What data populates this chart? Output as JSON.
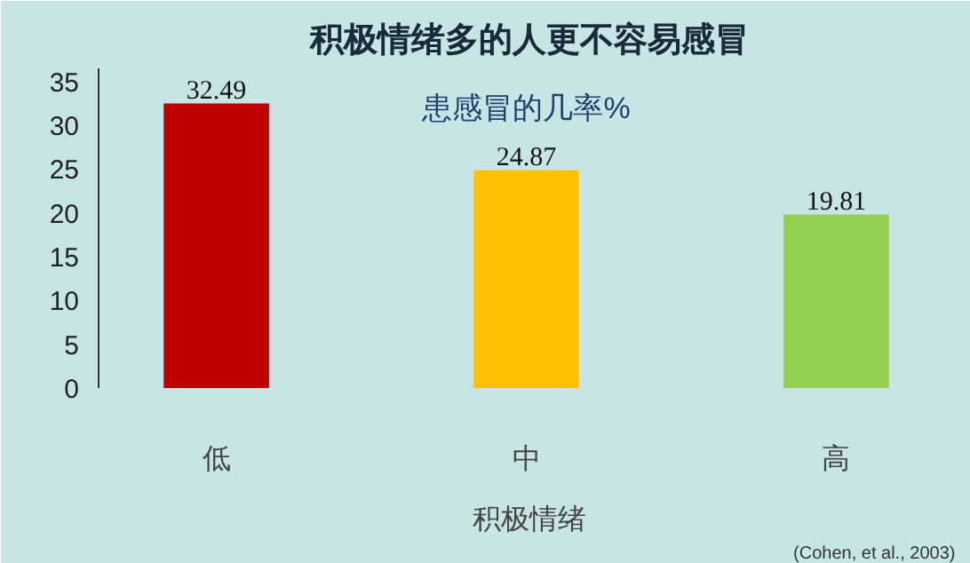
{
  "chart_data": {
    "type": "bar",
    "title": "积极情绪多的人更不容易感冒",
    "subtitle": "患感冒的几率%",
    "xlabel": "积极情绪",
    "categories": [
      "低",
      "中",
      "高"
    ],
    "values": [
      32.49,
      24.87,
      19.81
    ],
    "colors": [
      "#c00000",
      "#ffc000",
      "#92d050"
    ],
    "data_labels": true,
    "ylim": [
      0,
      36.5
    ],
    "yticks": [
      0,
      5,
      10,
      15,
      20,
      25,
      30,
      35
    ],
    "grid": false,
    "annotations": [
      "(Cohen,  et al., 2003)"
    ]
  }
}
